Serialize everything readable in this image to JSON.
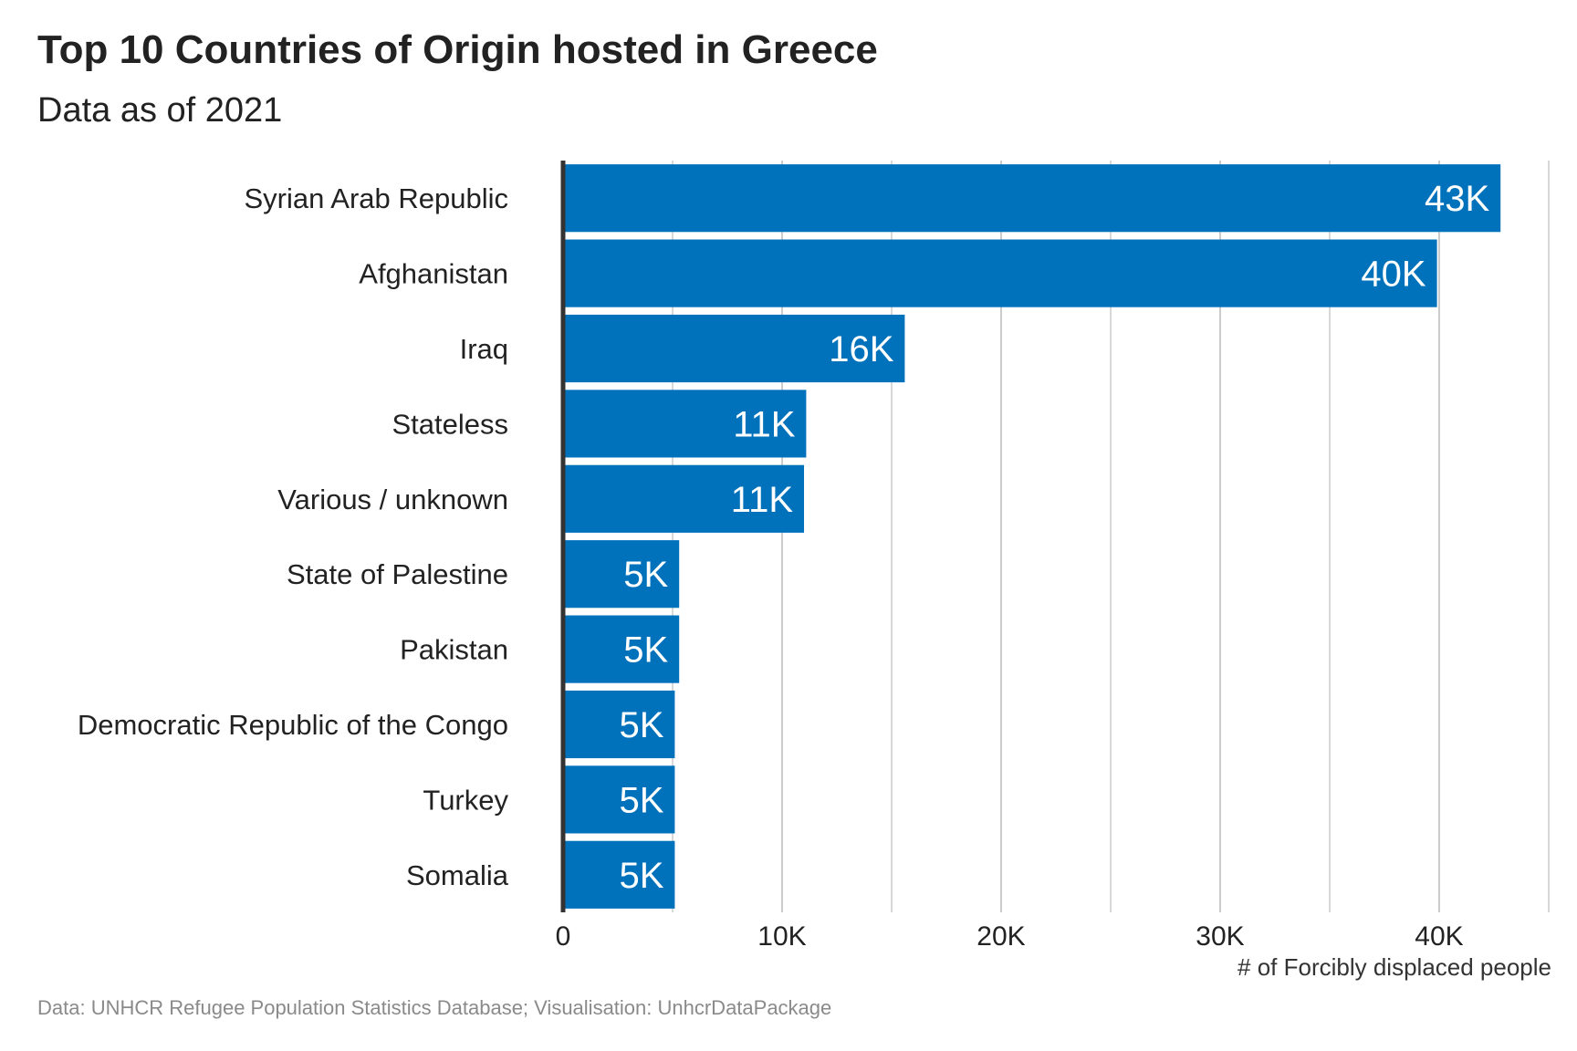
{
  "title": "Top 10 Countries of Origin hosted in Greece",
  "subtitle": "Data as of 2021",
  "caption": "Data: UNHCR Refugee Population Statistics Database; Visualisation: UnhcrDataPackage",
  "colors": {
    "bar": "#0072BC",
    "grid": "#cccccc",
    "axis": "#333333",
    "caption": "#8a8a8a"
  },
  "chart_data": {
    "type": "bar",
    "orientation": "horizontal",
    "title": "Top 10 Countries of Origin hosted in Greece",
    "subtitle": "Data as of 2021",
    "xlabel": "# of Forcibly displaced people",
    "ylabel": "",
    "xlim": [
      0,
      45000
    ],
    "grid": true,
    "categories": [
      "Syrian Arab Republic",
      "Afghanistan",
      "Iraq",
      "Stateless",
      "Various / unknown",
      "State of Palestine",
      "Pakistan",
      "Democratic Republic of the Congo",
      "Turkey",
      "Somalia"
    ],
    "values": [
      42800,
      39900,
      15600,
      11100,
      11000,
      5300,
      5300,
      5100,
      5100,
      5100
    ],
    "data_labels": [
      "43K",
      "40K",
      "16K",
      "11K",
      "11K",
      "5K",
      "5K",
      "5K",
      "5K",
      "5K"
    ],
    "x_ticks": [
      0,
      10000,
      20000,
      30000,
      40000
    ],
    "x_tick_labels": [
      "0",
      "10K",
      "20K",
      "30K",
      "40K"
    ]
  }
}
